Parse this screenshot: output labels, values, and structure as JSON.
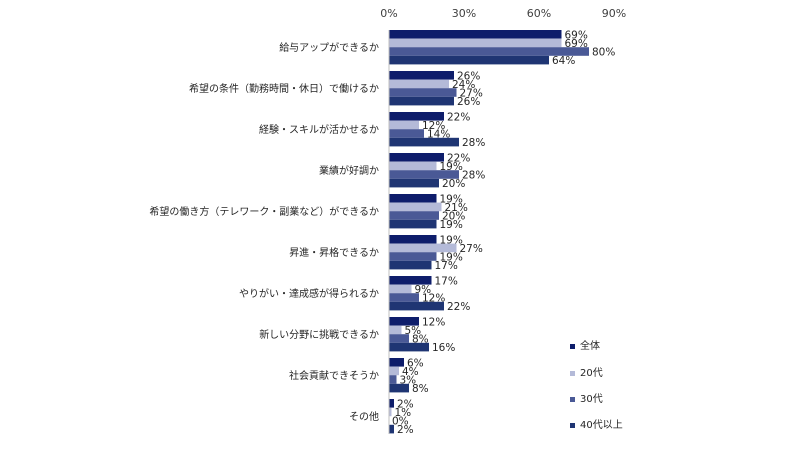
{
  "chart_data": {
    "type": "bar",
    "orientation": "horizontal",
    "xlim": [
      0,
      90
    ],
    "ticks": [
      0,
      30,
      60,
      90
    ],
    "tick_labels": [
      "0%",
      "30%",
      "60%",
      "90%"
    ],
    "categories": [
      "給与アップができるか",
      "希望の条件（勤務時間・休日）で働けるか",
      "経験・スキルが活かせるか",
      "業績が好調か",
      "希望の働き方（テレワーク・副業など）ができるか",
      "昇進・昇格できるか",
      "やりがい・達成感が得られるか",
      "新しい分野に挑戦できるか",
      "社会貢献できそうか",
      "その他"
    ],
    "series": [
      {
        "name": "全体",
        "color": "#0e1d6b",
        "values": [
          69,
          26,
          22,
          22,
          19,
          19,
          17,
          12,
          6,
          2
        ],
        "labels": [
          "69%",
          "26%",
          "22%",
          "22%",
          "19%",
          "19%",
          "17%",
          "12%",
          "6%",
          "2%"
        ]
      },
      {
        "name": "20代",
        "color": "#b4bad8",
        "values": [
          69,
          24,
          12,
          19,
          21,
          27,
          9,
          5,
          4,
          1
        ],
        "labels": [
          "69%",
          "24%",
          "12%",
          "19%",
          "21%",
          "27%",
          "9%",
          "5%",
          "4%",
          "1%"
        ]
      },
      {
        "name": "30代",
        "color": "#4a5996",
        "values": [
          80,
          27,
          14,
          28,
          20,
          19,
          12,
          8,
          3,
          0
        ],
        "labels": [
          "80%",
          "27%",
          "14%",
          "28%",
          "20%",
          "19%",
          "12%",
          "8%",
          "3%",
          "0%"
        ]
      },
      {
        "name": "40代以上",
        "color": "#1f3573",
        "values": [
          64,
          26,
          28,
          20,
          19,
          17,
          22,
          16,
          8,
          2
        ],
        "labels": [
          "64%",
          "26%",
          "28%",
          "20%",
          "19%",
          "17%",
          "22%",
          "16%",
          "8%",
          "2%"
        ]
      }
    ],
    "legend_position": "bottom-right",
    "grid": false
  }
}
